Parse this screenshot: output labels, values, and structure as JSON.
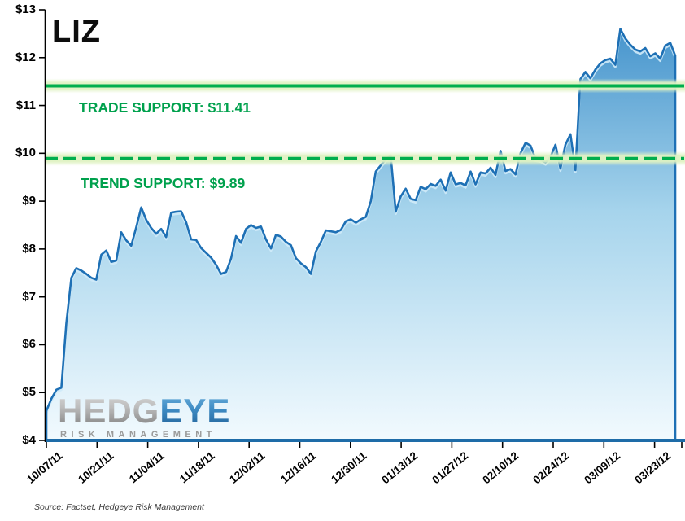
{
  "title": "LIZ",
  "source_note": "Source: Factset, Hedgeye Risk Management",
  "logo": {
    "word_primary": "HEDG",
    "word_accent": "EYE",
    "tagline": "RISK MANAGEMENT"
  },
  "colors": {
    "line_blue": "#1e70b5",
    "line_highlight": "#cfeaf8",
    "fill_top": "#4493cc",
    "fill_mid": "#a6d4ec",
    "fill_bottom": "#f2fafe",
    "baseline_blue": "#1e6ca8",
    "support_green": "#00ae4d",
    "support_glow": "#dff2c2",
    "label_green": "#00a14d",
    "axis_black": "#000000"
  },
  "chart_data": {
    "type": "area",
    "title": "LIZ",
    "xlabel": "",
    "ylabel": "",
    "ylim": [
      4,
      13
    ],
    "grid": false,
    "legend_position": "none",
    "y_ticks": [
      4,
      5,
      6,
      7,
      8,
      9,
      10,
      11,
      12,
      13
    ],
    "y_tick_labels": [
      "$4",
      "$5",
      "$6",
      "$7",
      "$8",
      "$9",
      "$10",
      "$11",
      "$12",
      "$13"
    ],
    "x_tick_labels": [
      "10/07/11",
      "10/21/11",
      "11/04/11",
      "11/18/11",
      "12/02/11",
      "12/16/11",
      "12/30/11",
      "01/13/12",
      "01/27/12",
      "02/10/12",
      "02/24/12",
      "03/09/12",
      "03/23/12"
    ],
    "support_lines": [
      {
        "label": "TRADE SUPPORT: $11.41",
        "value": 11.41,
        "line_style": "solid"
      },
      {
        "label": "TREND SUPPORT: $9.89",
        "value": 9.89,
        "line_style": "dashed"
      }
    ],
    "series": [
      {
        "name": "LIZ",
        "values": [
          4.62,
          4.87,
          5.06,
          5.1,
          6.45,
          7.4,
          7.6,
          7.55,
          7.48,
          7.4,
          7.36,
          7.88,
          7.97,
          7.73,
          7.76,
          8.35,
          8.18,
          8.07,
          8.45,
          8.87,
          8.61,
          8.44,
          8.32,
          8.42,
          8.25,
          8.76,
          8.78,
          8.79,
          8.56,
          8.2,
          8.19,
          8.02,
          7.92,
          7.82,
          7.67,
          7.48,
          7.52,
          7.8,
          8.27,
          8.13,
          8.42,
          8.5,
          8.44,
          8.47,
          8.2,
          8.01,
          8.3,
          8.26,
          8.15,
          8.08,
          7.81,
          7.7,
          7.62,
          7.48,
          7.95,
          8.15,
          8.39,
          8.37,
          8.35,
          8.4,
          8.58,
          8.62,
          8.55,
          8.62,
          8.67,
          9.0,
          9.62,
          9.75,
          9.88,
          9.95,
          8.78,
          9.1,
          9.26,
          9.05,
          9.02,
          9.3,
          9.25,
          9.36,
          9.32,
          9.45,
          9.22,
          9.6,
          9.35,
          9.38,
          9.33,
          9.62,
          9.35,
          9.6,
          9.58,
          9.7,
          9.55,
          10.05,
          9.63,
          9.67,
          9.56,
          10.0,
          10.22,
          10.16,
          9.89,
          9.87,
          9.81,
          9.92,
          10.18,
          9.68,
          10.18,
          10.4,
          9.65,
          11.55,
          11.7,
          11.57,
          11.75,
          11.88,
          11.95,
          11.98,
          11.85,
          12.6,
          12.4,
          12.27,
          12.17,
          12.13,
          12.2,
          12.03,
          12.09,
          11.98,
          12.25,
          12.31,
          12.04
        ]
      }
    ]
  }
}
